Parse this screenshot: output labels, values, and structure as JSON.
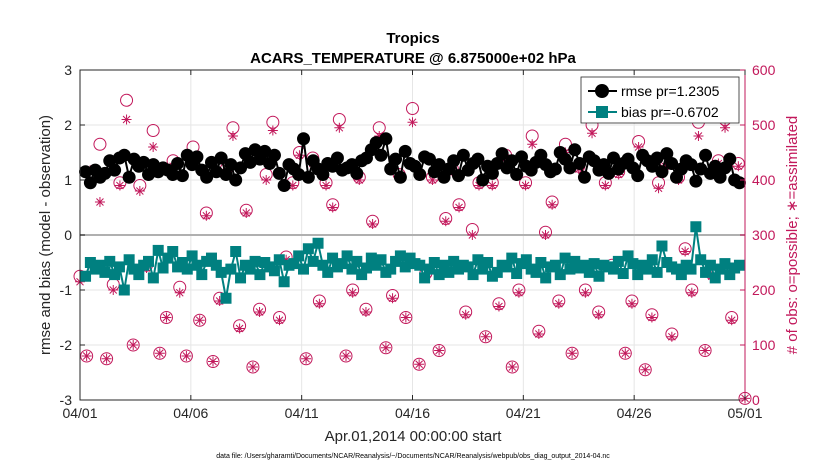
{
  "chart_data": {
    "type": "line",
    "title": "Tropics",
    "subtitle": "ACARS_TEMPERATURE @ 6.875000e+02 hPa",
    "xlabel": "Apr.01,2014 00:00:00 start",
    "ylabel": "rmse and bias (model - observation)",
    "y2label": "# of obs: o=possible; ∗=assimilated",
    "xlim": [
      0,
      30
    ],
    "ylim": [
      -3,
      3
    ],
    "y2lim": [
      0,
      600
    ],
    "x_ticks": [
      0,
      5,
      10,
      15,
      20,
      25,
      30
    ],
    "x_tick_labels": [
      "04/01",
      "04/06",
      "04/11",
      "04/16",
      "04/21",
      "04/26",
      "05/01"
    ],
    "y_ticks": [
      -3,
      -2,
      -1,
      0,
      1,
      2,
      3
    ],
    "y_tick_labels": [
      "-3",
      "-2",
      "-1",
      "0",
      "1",
      "2",
      "3"
    ],
    "y2_ticks": [
      0,
      100,
      200,
      300,
      400,
      500,
      600
    ],
    "y2_tick_labels": [
      "0",
      "100",
      "200",
      "300",
      "400",
      "500",
      "600"
    ],
    "footnote": "data file: /Users/gharamti/Documents/NCAR/Reanalysis/~/Documents/NCAR/Reanalysis/webpub/obs_diag_output_2014-04.nc",
    "series": [
      {
        "name": "rmse pr=1.2305",
        "axis": "left",
        "color": "#000000",
        "marker": "circle",
        "values": [
          1.15,
          0.95,
          1.18,
          1.05,
          1.12,
          1.35,
          1.18,
          1.4,
          1.45,
          1.05,
          1.38,
          1.25,
          1.32,
          1.1,
          1.28,
          1.15,
          1.22,
          1.18,
          1.1,
          1.3,
          1.08,
          1.45,
          1.28,
          1.42,
          1.18,
          1.05,
          1.32,
          1.15,
          1.4,
          1.1,
          1.28,
          1.0,
          1.22,
          1.48,
          1.32,
          1.55,
          1.38,
          1.52,
          1.3,
          1.45,
          1.12,
          0.9,
          1.28,
          1.2,
          1.1,
          1.75,
          1.05,
          1.35,
          1.2,
          1.1,
          1.3,
          1.25,
          1.4,
          1.18,
          1.22,
          1.28,
          1.12,
          1.35,
          1.4,
          1.55,
          1.68,
          1.45,
          1.75,
          1.2,
          1.38,
          1.05,
          1.52,
          1.3,
          1.25,
          1.1,
          1.42,
          1.38,
          1.15,
          1.28,
          1.05,
          1.2,
          1.35,
          1.08,
          1.45,
          1.18,
          1.3,
          1.38,
          1.0,
          1.25,
          1.12,
          1.3,
          1.48,
          1.22,
          1.35,
          1.1,
          1.42,
          1.25,
          1.18,
          1.32,
          1.45,
          1.28,
          1.15,
          1.2,
          1.5,
          1.38,
          1.22,
          1.55,
          1.3,
          1.05,
          1.42,
          1.35,
          1.18,
          1.28,
          1.12,
          1.4,
          1.2,
          1.3,
          1.38,
          1.22,
          1.08,
          1.45,
          1.35,
          1.25,
          1.4,
          1.15,
          1.48,
          1.3,
          1.05,
          1.2,
          1.35,
          1.28,
          0.98,
          1.2,
          1.45,
          1.12,
          1.25,
          1.05,
          1.22,
          1.38,
          1.0,
          0.95
        ]
      },
      {
        "name": "bias pr=-0.6702",
        "axis": "left",
        "color": "#008080",
        "marker": "square",
        "values": [
          -0.75,
          -0.5,
          -0.62,
          -0.55,
          -0.68,
          -0.48,
          -0.72,
          -0.58,
          -1.0,
          -0.45,
          -0.62,
          -0.72,
          -0.55,
          -0.48,
          -0.78,
          -0.28,
          -0.6,
          -0.42,
          -0.3,
          -0.58,
          -0.5,
          -0.62,
          -0.38,
          -0.55,
          -0.72,
          -0.48,
          -0.42,
          -0.55,
          -0.68,
          -1.15,
          -0.62,
          -0.3,
          -0.78,
          -0.55,
          -0.62,
          -0.48,
          -0.72,
          -0.5,
          -0.58,
          -0.65,
          -0.45,
          -0.85,
          -0.55,
          -0.52,
          -0.38,
          -0.62,
          -0.25,
          -0.48,
          -0.15,
          -0.55,
          -0.68,
          -0.42,
          -0.58,
          -0.52,
          -0.38,
          -0.62,
          -0.48,
          -0.72,
          -0.6,
          -0.42,
          -0.55,
          -0.45,
          -0.68,
          -0.62,
          -0.48,
          -0.38,
          -0.58,
          -0.42,
          -0.52,
          -0.55,
          -0.78,
          -0.62,
          -0.5,
          -0.72,
          -0.55,
          -0.68,
          -0.48,
          -0.62,
          -0.55,
          -0.58,
          -0.72,
          -0.45,
          -0.62,
          -0.5,
          -0.75,
          -0.68,
          -0.55,
          -0.58,
          -0.42,
          -0.7,
          -0.52,
          -0.45,
          -0.62,
          -0.68,
          -0.5,
          -0.78,
          -0.58,
          -0.55,
          -0.72,
          -0.42,
          -0.62,
          -0.48,
          -0.6,
          -0.55,
          -0.68,
          -0.52,
          -0.75,
          -0.55,
          -0.58,
          -0.62,
          -0.48,
          -0.7,
          -0.38,
          -0.52,
          -0.72,
          -0.55,
          -0.62,
          -0.45,
          -0.68,
          -0.2,
          -0.5,
          -0.58,
          -0.62,
          -0.72,
          -0.55,
          -0.62,
          0.15,
          -0.45,
          -0.68,
          -0.55,
          -0.78,
          -0.62,
          -0.52,
          -0.72,
          -0.6,
          -0.55
        ]
      },
      {
        "name": "# of obs possible",
        "axis": "right",
        "color": "#c2185b",
        "marker": "open-circle",
        "x": [
          0.0,
          0.3,
          0.6,
          0.9,
          1.2,
          1.5,
          1.8,
          2.1,
          2.4,
          2.7,
          3.0,
          3.3,
          3.6,
          3.9,
          4.2,
          4.5,
          4.8,
          5.1,
          5.4,
          5.7,
          6.0,
          6.3,
          6.6,
          6.9,
          7.2,
          7.5,
          7.8,
          8.1,
          8.4,
          8.7,
          9.0,
          9.3,
          9.6,
          9.9,
          10.2,
          10.5,
          10.8,
          11.1,
          11.4,
          11.7,
          12.0,
          12.3,
          12.6,
          12.9,
          13.2,
          13.5,
          13.8,
          14.1,
          14.4,
          14.7,
          15.0,
          15.3,
          15.6,
          15.9,
          16.2,
          16.5,
          16.8,
          17.1,
          17.4,
          17.7,
          18.0,
          18.3,
          18.6,
          18.9,
          19.2,
          19.5,
          19.8,
          20.1,
          20.4,
          20.7,
          21.0,
          21.3,
          21.6,
          21.9,
          22.2,
          22.5,
          22.8,
          23.1,
          23.4,
          23.7,
          24.0,
          24.3,
          24.6,
          24.9,
          25.2,
          25.5,
          25.8,
          26.1,
          26.4,
          26.7,
          27.0,
          27.3,
          27.6,
          27.9,
          28.2,
          28.5,
          28.8,
          29.1,
          29.4,
          29.7,
          30.0
        ],
        "values": [
          225,
          80,
          415,
          465,
          75,
          210,
          395,
          545,
          100,
          390,
          245,
          490,
          85,
          150,
          435,
          205,
          80,
          460,
          145,
          340,
          70,
          185,
          420,
          495,
          135,
          345,
          60,
          165,
          410,
          505,
          150,
          260,
          395,
          450,
          75,
          440,
          180,
          395,
          355,
          510,
          80,
          200,
          405,
          165,
          325,
          495,
          95,
          190,
          410,
          150,
          530,
          65,
          230,
          405,
          90,
          330,
          420,
          355,
          160,
          310,
          395,
          115,
          395,
          175,
          445,
          60,
          200,
          395,
          480,
          125,
          305,
          360,
          180,
          465,
          85,
          425,
          200,
          500,
          160,
          395,
          245,
          415,
          85,
          180,
          470,
          55,
          155,
          395,
          435,
          120,
          405,
          275,
          200,
          505,
          90,
          230,
          435,
          510,
          150,
          430,
          3
        ]
      },
      {
        "name": "# of obs assimilated",
        "axis": "right",
        "color": "#c2185b",
        "marker": "asterisk",
        "x": [
          0.0,
          0.3,
          0.6,
          0.9,
          1.2,
          1.5,
          1.8,
          2.1,
          2.4,
          2.7,
          3.0,
          3.3,
          3.6,
          3.9,
          4.2,
          4.5,
          4.8,
          5.1,
          5.4,
          5.7,
          6.0,
          6.3,
          6.6,
          6.9,
          7.2,
          7.5,
          7.8,
          8.1,
          8.4,
          8.7,
          9.0,
          9.3,
          9.6,
          9.9,
          10.2,
          10.5,
          10.8,
          11.1,
          11.4,
          11.7,
          12.0,
          12.3,
          12.6,
          12.9,
          13.2,
          13.5,
          13.8,
          14.1,
          14.4,
          14.7,
          15.0,
          15.3,
          15.6,
          15.9,
          16.2,
          16.5,
          16.8,
          17.1,
          17.4,
          17.7,
          18.0,
          18.3,
          18.6,
          18.9,
          19.2,
          19.5,
          19.8,
          20.1,
          20.4,
          20.7,
          21.0,
          21.3,
          21.6,
          21.9,
          22.2,
          22.5,
          22.8,
          23.1,
          23.4,
          23.7,
          24.0,
          24.3,
          24.6,
          24.9,
          25.2,
          25.5,
          25.8,
          26.1,
          26.4,
          26.7,
          27.0,
          27.3,
          27.6,
          27.9,
          28.2,
          28.5,
          28.8,
          29.1,
          29.4,
          29.7,
          30.0
        ],
        "values": [
          215,
          80,
          420,
          360,
          75,
          200,
          390,
          510,
          100,
          380,
          240,
          460,
          85,
          150,
          425,
          195,
          80,
          440,
          145,
          335,
          70,
          180,
          415,
          480,
          130,
          340,
          60,
          160,
          400,
          490,
          145,
          255,
          390,
          445,
          75,
          430,
          175,
          390,
          350,
          495,
          80,
          195,
          400,
          160,
          320,
          480,
          95,
          185,
          405,
          150,
          505,
          65,
          225,
          400,
          90,
          325,
          415,
          350,
          155,
          300,
          390,
          115,
          390,
          170,
          440,
          60,
          195,
          390,
          465,
          120,
          300,
          355,
          175,
          450,
          85,
          420,
          195,
          485,
          155,
          390,
          240,
          410,
          85,
          175,
          460,
          55,
          150,
          385,
          425,
          115,
          400,
          270,
          195,
          480,
          90,
          225,
          430,
          495,
          145,
          425,
          3
        ]
      }
    ]
  }
}
